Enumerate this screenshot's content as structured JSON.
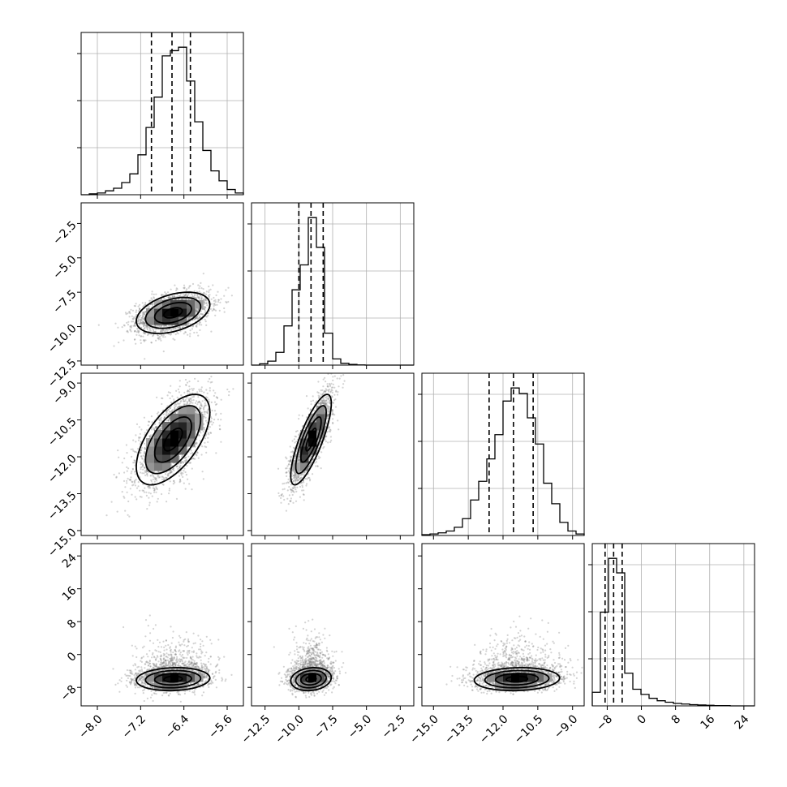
{
  "chart_data": {
    "type": "corner",
    "title": "",
    "parameters": [
      {
        "xlim": [
          -8.3,
          -5.3
        ],
        "xticks": [
          -8.0,
          -7.2,
          -6.4,
          -5.6
        ],
        "xtick_labels": [
          "−8.0",
          "−7.2",
          "−6.4",
          "−5.6"
        ],
        "quantiles": [
          -7.0,
          -6.62,
          -6.28
        ]
      },
      {
        "xlim": [
          -13.5,
          -1.5
        ],
        "xticks": [
          -12.5,
          -10.0,
          -7.5,
          -5.0,
          -2.5
        ],
        "xtick_labels": [
          "−12.5",
          "−10.0",
          "−7.5",
          "−5.0",
          "−2.5"
        ],
        "ylim": [
          -12.8,
          -1.0
        ],
        "yticks": [
          -2.5,
          -5.0,
          -7.5,
          -10.0,
          -12.5
        ],
        "ytick_labels": [
          "−2.5",
          "−5.0",
          "−7.5",
          "−10.0",
          "−12.5"
        ],
        "quantiles": [
          -10.0,
          -9.1,
          -8.2
        ]
      },
      {
        "xlim": [
          -15.5,
          -8.5
        ],
        "xticks": [
          -15.0,
          -13.5,
          -12.0,
          -10.5,
          -9.0
        ],
        "xtick_labels": [
          "−15.0",
          "−13.5",
          "−12.0",
          "−10.5",
          "−9.0"
        ],
        "ylim": [
          -15.2,
          -8.6
        ],
        "yticks": [
          -9.0,
          -10.5,
          -12.0,
          -13.5,
          -15.0
        ],
        "ytick_labels": [
          "−9.0",
          "−10.5",
          "−12.0",
          "−13.5",
          "−15.0"
        ],
        "quantiles": [
          -12.6,
          -11.55,
          -10.7
        ]
      },
      {
        "xlim": [
          -11.5,
          26.5
        ],
        "xticks": [
          -8,
          0,
          8,
          16,
          24
        ],
        "xtick_labels": [
          "−8",
          "0",
          "8",
          "16",
          "24"
        ],
        "ylim": [
          -12.5,
          27.0
        ],
        "yticks": [
          24,
          16,
          8,
          0,
          -8
        ],
        "ytick_labels": [
          "24",
          "16",
          "8",
          "0",
          "−8"
        ],
        "quantiles": [
          -8.5,
          -6.5,
          -4.5
        ]
      }
    ],
    "histograms": [
      {
        "bin_edges": [
          -8.3,
          -8.15,
          -8.0,
          -7.85,
          -7.7,
          -7.55,
          -7.4,
          -7.25,
          -7.1,
          -6.95,
          -6.8,
          -6.65,
          -6.5,
          -6.35,
          -6.2,
          -6.05,
          -5.9,
          -5.75,
          -5.6,
          -5.45,
          -5.3
        ],
        "counts": [
          0,
          2,
          4,
          9,
          15,
          28,
          48,
          92,
          155,
          225,
          320,
          332,
          340,
          262,
          168,
          102,
          55,
          32,
          12,
          4
        ]
      },
      {
        "bin_edges": [
          -13.5,
          -12.9,
          -12.3,
          -11.7,
          -11.1,
          -10.5,
          -9.9,
          -9.3,
          -8.7,
          -8.1,
          -7.5,
          -6.9,
          -6.3,
          -5.7,
          -5.1,
          -4.5,
          -3.9,
          -3.3,
          -2.7,
          -2.1,
          -1.5
        ],
        "counts": [
          0,
          6,
          18,
          58,
          178,
          342,
          455,
          670,
          535,
          145,
          28,
          8,
          3,
          1,
          0,
          0,
          0,
          0,
          0,
          0
        ]
      },
      {
        "bin_edges": [
          -15.5,
          -15.15,
          -14.8,
          -14.45,
          -14.1,
          -13.75,
          -13.4,
          -13.05,
          -12.7,
          -12.35,
          -12.0,
          -11.65,
          -11.3,
          -10.95,
          -10.6,
          -10.25,
          -9.9,
          -9.55,
          -9.2,
          -8.85,
          -8.5
        ],
        "counts": [
          2,
          4,
          7,
          12,
          22,
          45,
          95,
          145,
          205,
          270,
          360,
          395,
          380,
          315,
          245,
          140,
          85,
          35,
          12,
          4
        ]
      },
      {
        "bin_edges": [
          -11.5,
          -9.6,
          -7.7,
          -5.8,
          -3.9,
          -2.0,
          -0.1,
          1.8,
          3.7,
          5.6,
          7.5,
          9.4,
          11.3,
          13.2,
          15.1,
          17.0,
          18.9,
          20.8,
          22.7,
          24.6,
          26.5
        ],
        "counts": [
          45,
          310,
          488,
          440,
          108,
          55,
          38,
          25,
          17,
          12,
          8,
          6,
          4,
          3,
          2,
          1,
          1,
          0,
          0,
          0
        ]
      }
    ],
    "pairs": [
      {
        "row": 1,
        "col": 0,
        "mean": [
          -6.6,
          -9.0
        ],
        "sd": [
          0.34,
          0.75
        ],
        "rho": 0.4
      },
      {
        "row": 2,
        "col": 0,
        "mean": [
          -6.6,
          -11.3
        ],
        "sd": [
          0.34,
          0.92
        ],
        "rho": 0.6
      },
      {
        "row": 2,
        "col": 1,
        "mean": [
          -9.1,
          -11.3
        ],
        "sd": [
          0.75,
          0.92
        ],
        "rho": 0.8
      },
      {
        "row": 3,
        "col": 0,
        "mean": [
          -6.6,
          -6.0
        ],
        "sd": [
          0.34,
          2.6
        ],
        "rho": 0.1
      },
      {
        "row": 3,
        "col": 1,
        "mean": [
          -9.1,
          -6.0
        ],
        "sd": [
          0.75,
          2.6
        ],
        "rho": 0.15
      },
      {
        "row": 3,
        "col": 2,
        "mean": [
          -11.4,
          -6.0
        ],
        "sd": [
          0.92,
          2.6
        ],
        "rho": 0.1
      }
    ],
    "contour_levels_sigma": [
      0.5,
      1.0,
      1.5,
      2.0
    ],
    "grid": true,
    "colors": {
      "line": "#000000",
      "points": "#808080",
      "grid": "#b0b0b0"
    }
  }
}
